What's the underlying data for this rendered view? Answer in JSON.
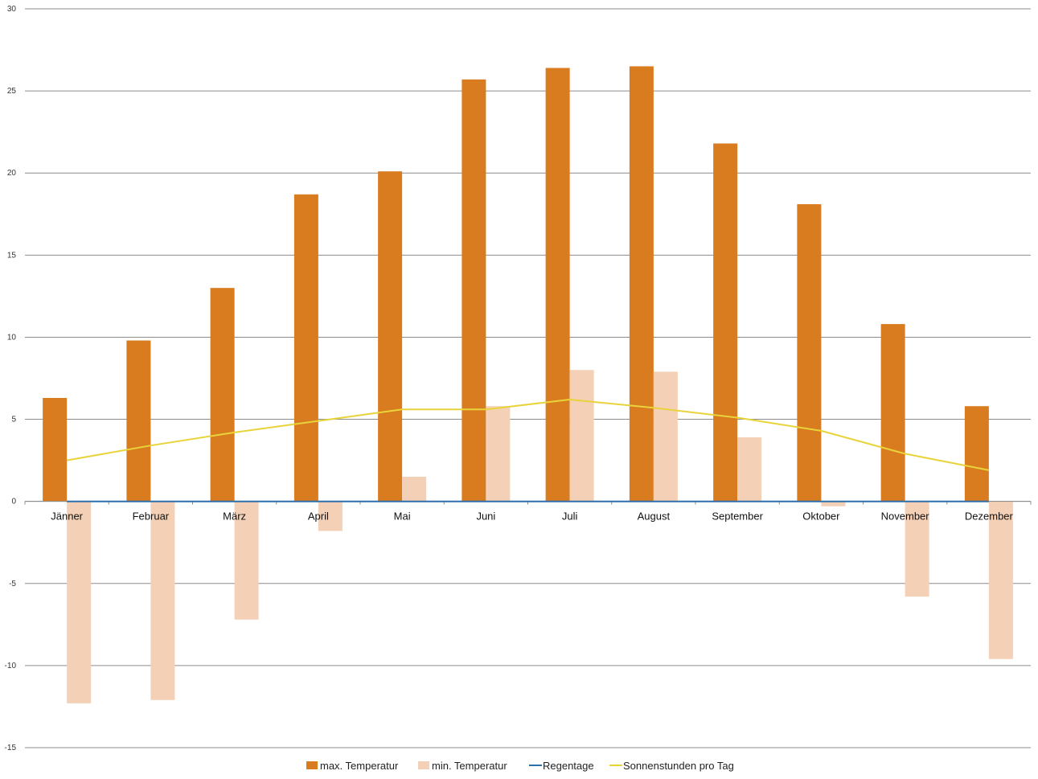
{
  "chart_data": {
    "type": "bar",
    "categories": [
      "Jänner",
      "Februar",
      "März",
      "April",
      "Mai",
      "Juni",
      "Juli",
      "August",
      "September",
      "Oktober",
      "November",
      "Dezember"
    ],
    "series": [
      {
        "name": "max. Temperatur",
        "kind": "bar",
        "color": "#D97C20",
        "values": [
          6.3,
          9.8,
          13.0,
          18.7,
          20.1,
          25.7,
          26.4,
          26.5,
          21.8,
          18.1,
          10.8,
          5.8
        ]
      },
      {
        "name": "min. Temperatur",
        "kind": "bar",
        "color": "#F4D0B6",
        "values": [
          -12.3,
          -12.1,
          -7.2,
          -1.8,
          1.5,
          5.8,
          8.0,
          7.9,
          3.9,
          -0.3,
          -5.8,
          -9.6
        ]
      },
      {
        "name": "Regentage",
        "kind": "line",
        "color": "#2E6FAA",
        "values": [
          0,
          0,
          0,
          0,
          0,
          0,
          0,
          0,
          0,
          0,
          0,
          0
        ]
      },
      {
        "name": "Sonnenstunden pro Tag",
        "kind": "line",
        "color": "#E8D43A",
        "values": [
          2.5,
          3.4,
          4.2,
          4.9,
          5.6,
          5.6,
          6.2,
          5.7,
          5.1,
          4.3,
          2.9,
          1.9
        ]
      }
    ],
    "ylim": [
      -15,
      30
    ],
    "yticks": [
      30,
      25,
      20,
      15,
      10,
      5,
      0,
      -5,
      -10,
      -15
    ],
    "ytick_labels": [
      "30",
      "25",
      "20",
      "15",
      "10",
      "5",
      "0",
      "-5",
      "-10",
      "-15"
    ],
    "grid": true,
    "legend_position": "bottom",
    "title": "",
    "xlabel": "",
    "ylabel": ""
  }
}
